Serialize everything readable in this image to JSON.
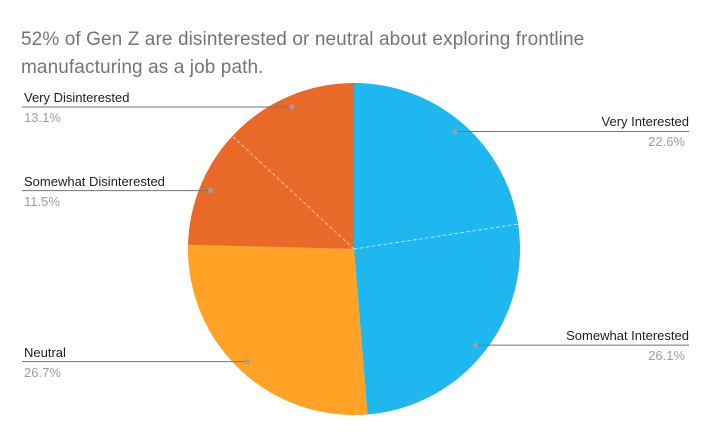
{
  "header": {
    "title": "52% of Gen Z are disinterested or neutral about exploring frontline\nmanufacturing as a job path."
  },
  "chart_data": {
    "type": "pie",
    "title": "52% of Gen Z are disinterested or neutral about exploring frontline manufacturing as a job path.",
    "start_angle_deg": 0,
    "direction": "clockwise",
    "labeling": "callout-labels-with-leader-lines",
    "slices": [
      {
        "id": "very-interested",
        "label": "Very Interested",
        "value": 22.6,
        "pct_label": "22.6%",
        "color": "#1EB7EF"
      },
      {
        "id": "somewhat-interested",
        "label": "Somewhat Interested",
        "value": 26.1,
        "pct_label": "26.1%",
        "color": "#1EB7EF"
      },
      {
        "id": "neutral",
        "label": "Neutral",
        "value": 26.7,
        "pct_label": "26.7%",
        "color": "#FFA226"
      },
      {
        "id": "somewhat-disinterested",
        "label": "Somewhat Disinterested",
        "value": 11.5,
        "pct_label": "11.5%",
        "color": "#E96A28"
      },
      {
        "id": "very-disinterested",
        "label": "Very Disinterested",
        "value": 13.1,
        "pct_label": "13.1%",
        "color": "#E96A28"
      }
    ],
    "colors": {
      "background": "#FFFFFF",
      "title_text": "#757575",
      "label_text": "#212121",
      "pct_text": "#9E9E9E",
      "leader_line": "#757575",
      "leader_dot": "#9E9E9E",
      "slice_divider": "#FFFFFF"
    }
  }
}
